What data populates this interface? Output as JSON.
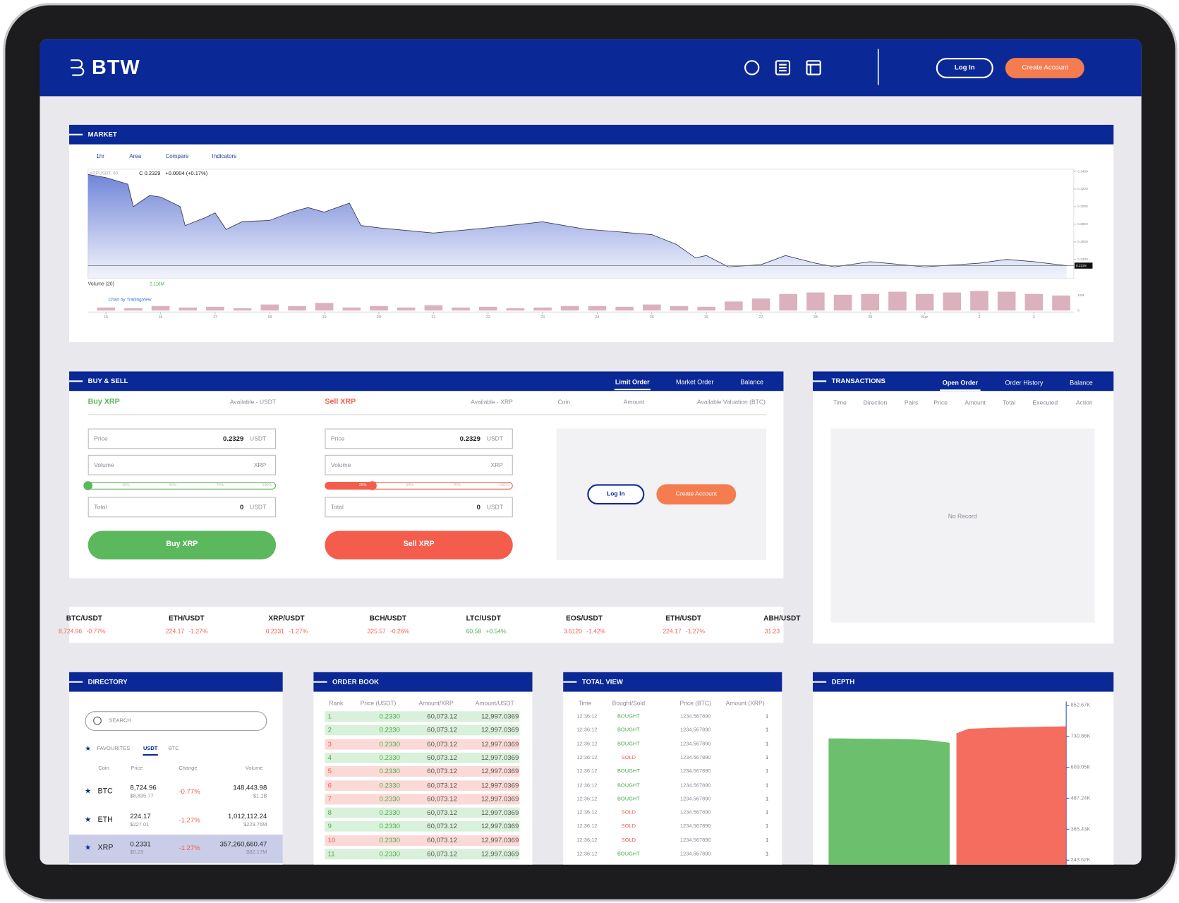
{
  "header": {
    "logo": "BTW",
    "login": "Log In",
    "create_account": "Create Account"
  },
  "market": {
    "title": "MARKET",
    "toolbar": [
      "1hr",
      "Area",
      "Compare",
      "Indicators"
    ],
    "symbol": "XRPUSDT, 60",
    "close": "C 0.2329",
    "change": "+0.0004 (+0.17%)",
    "credit": "Chart by TradingView"
  },
  "chart_data": [
    {
      "type": "area",
      "color": "#6a7fd6",
      "line_color": "#333a55",
      "x": [
        -0.33,
        0,
        0.4,
        0.5,
        0.8,
        1,
        1.36,
        1.45,
        1.8,
        2,
        2.2,
        2.5,
        3,
        3.4,
        3.7,
        4,
        4.46,
        4.67,
        5,
        6,
        7,
        8,
        8.8,
        9,
        10,
        10.45,
        10.8,
        11,
        11.4,
        12,
        12.45,
        13,
        13.35,
        14,
        15,
        16,
        16.5,
        17,
        17.6
      ],
      "values": [
        0.3366,
        0.333,
        0.3255,
        0.3,
        0.3127,
        0.311,
        0.3,
        0.2785,
        0.287,
        0.293,
        0.274,
        0.283,
        0.2844,
        0.2938,
        0.299,
        0.2938,
        0.304,
        0.2785,
        0.2759,
        0.27,
        0.2759,
        0.2827,
        0.2742,
        0.2733,
        0.2682,
        0.2571,
        0.2417,
        0.2443,
        0.2315,
        0.234,
        0.2443,
        0.2357,
        0.2315,
        0.2374,
        0.2315,
        0.2357,
        0.24,
        0.2374,
        0.2329
      ],
      "last_price": 0.2329,
      "xlim": [
        -0.33,
        17.73
      ],
      "xticks": [
        {
          "value": 0,
          "label": "15"
        },
        {
          "value": 1,
          "label": "16"
        },
        {
          "value": 2,
          "label": "17"
        },
        {
          "value": 3,
          "label": "18"
        },
        {
          "value": 4,
          "label": "19"
        },
        {
          "value": 5,
          "label": "20"
        },
        {
          "value": 6,
          "label": "21"
        },
        {
          "value": 7,
          "label": "22"
        },
        {
          "value": 8,
          "label": "23"
        },
        {
          "value": 9,
          "label": "24"
        },
        {
          "value": 10,
          "label": "25"
        },
        {
          "value": 11,
          "label": "26"
        },
        {
          "value": 12,
          "label": "27"
        },
        {
          "value": 13,
          "label": "28"
        },
        {
          "value": 14,
          "label": "29"
        },
        {
          "value": 15,
          "label": "Mar"
        },
        {
          "value": 16,
          "label": "2"
        },
        {
          "value": 17,
          "label": "3"
        }
      ],
      "ylim": [
        0.2186,
        0.3426
      ],
      "yticks": [
        {
          "value": 0.24,
          "label": "0.2400"
        },
        {
          "value": 0.26,
          "label": "0.2600"
        },
        {
          "value": 0.28,
          "label": "0.2800"
        },
        {
          "value": 0.3,
          "label": "0.3000"
        },
        {
          "value": 0.32,
          "label": "0.3200"
        },
        {
          "value": 0.34,
          "label": "0.3400"
        }
      ]
    },
    {
      "type": "bar",
      "title": "Volume (20)",
      "color": "#d3a3b0",
      "last_volume": {
        "value": 2.116,
        "label": "2.116M"
      },
      "x": [
        0,
        0.5,
        1,
        1.5,
        2,
        2.5,
        3,
        3.5,
        4,
        4.5,
        5,
        5.5,
        6,
        6.5,
        7,
        7.5,
        8,
        8.5,
        9,
        9.5,
        10,
        10.5,
        11,
        11.5,
        12,
        12.5,
        13,
        13.5,
        14,
        14.5,
        15,
        15.5,
        16,
        16.5,
        17,
        17.5
      ],
      "values": [
        2,
        1.5,
        3,
        2,
        2.5,
        1.5,
        4,
        3,
        5,
        2,
        3,
        2,
        3.5,
        2,
        2.5,
        1.5,
        2,
        3,
        3,
        2.5,
        4,
        3,
        2.5,
        6,
        8,
        11,
        12,
        10.5,
        11,
        12.5,
        11,
        12,
        13,
        12.5,
        11,
        10
      ],
      "xlim": [
        -0.33,
        17.73
      ],
      "ylim": [
        0,
        15
      ],
      "yticks": [
        0,
        {
          "value": 10,
          "label": "10M"
        }
      ]
    },
    {
      "type": "depth",
      "bids": {
        "color": "#5cb85c",
        "values": [
          722000,
          722000,
          721500,
          721000,
          720500,
          720000,
          719000,
          717000,
          712000,
          705000
        ]
      },
      "asks": {
        "color": "#f45d4c",
        "values": [
          742000,
          760000,
          762000,
          764000,
          765000,
          766000,
          767000,
          768000,
          769000,
          770000
        ]
      },
      "ylim": [
        225870,
        867450
      ],
      "yticks": [
        {
          "value": 243620,
          "label": "243.62K"
        },
        {
          "value": 365430,
          "label": "365.43K"
        },
        {
          "value": 487240,
          "label": "487.24K"
        },
        {
          "value": 609050,
          "label": "609.05K"
        },
        {
          "value": 730860,
          "label": "730.86K"
        },
        {
          "value": 852670,
          "label": "852.67K"
        }
      ]
    }
  ],
  "buy_sell": {
    "title": "BUY & SELL",
    "tabs": [
      "Limit Order",
      "Market Order",
      "Balance"
    ],
    "buy": {
      "heading": "Buy XRP",
      "available": "Available - USDT",
      "price_label": "Price",
      "price": "0.2329",
      "price_unit": "USDT",
      "volume_label": "Volume",
      "volume_unit": "XRP",
      "slider": 0,
      "steps": [
        "25%",
        "50%",
        "75%",
        "100%"
      ],
      "total_label": "Total",
      "total": "0",
      "total_unit": "USDT",
      "button": "Buy XRP",
      "color": "#5cb85c"
    },
    "sell": {
      "heading": "Sell XRP",
      "available": "Available - XRP",
      "price_label": "Price",
      "price": "0.2329",
      "price_unit": "USDT",
      "volume_label": "Volume",
      "volume_unit": "XRP",
      "slider": 25,
      "steps": [
        "25%",
        "50%",
        "75%",
        "100%"
      ],
      "total_label": "Total",
      "total": "0",
      "total_unit": "USDT",
      "button": "Sell XRP",
      "color": "#f45d4c"
    },
    "balance_columns": [
      "Coin",
      "Amount",
      "Available Valuation (BTC)"
    ],
    "login": "Log In",
    "create_account": "Create Account"
  },
  "ticker": [
    {
      "pair": "BTC/USDT",
      "price": "8,724.96",
      "change": "-0.77%",
      "color": "#f45d4c"
    },
    {
      "pair": "ETH/USDT",
      "price": "224.17",
      "change": "-1.27%",
      "color": "#f45d4c"
    },
    {
      "pair": "XRP/USDT",
      "price": "0.2331",
      "change": "-1.27%",
      "color": "#f45d4c"
    },
    {
      "pair": "BCH/USDT",
      "price": "325.57",
      "change": "-0.26%",
      "color": "#f45d4c"
    },
    {
      "pair": "LTC/USDT",
      "price": "60.58",
      "change": "+0.54%",
      "color": "#4cae4c"
    },
    {
      "pair": "EOS/USDT",
      "price": "3.6120",
      "change": "-1.42%",
      "color": "#f45d4c"
    },
    {
      "pair": "ETH/USDT",
      "price": "224.17",
      "change": "-1.27%",
      "color": "#f45d4c"
    },
    {
      "pair": "ABH/USDT",
      "price": "31.23",
      "color": "#f45d4c"
    }
  ],
  "transactions": {
    "title": "TRANSACTIONS",
    "tabs": [
      "Open Order",
      "Order History",
      "Balance"
    ],
    "columns": [
      "Time",
      "Direction",
      "Pairs",
      "Price",
      "Amount",
      "Total",
      "Executed",
      "Action"
    ],
    "empty": "No Record"
  },
  "directory": {
    "title": "DIRECTORY",
    "search": "SEARCH",
    "tabs": [
      "FAVOURITES",
      "USDT",
      "BTC"
    ],
    "columns": [
      "Coin",
      "Price",
      "Change",
      "Volume"
    ],
    "rows": [
      {
        "coin": "BTC",
        "price": "8,724.96",
        "price_usd": "$8,835.77",
        "change": "-0.77%",
        "volume": "148,443.98",
        "volume_usd": "$1.1B",
        "selected": false
      },
      {
        "coin": "ETH",
        "price": "224.17",
        "price_usd": "$227.01",
        "change": "-1.27%",
        "volume": "1,012,112.24",
        "volume_usd": "$229.76M",
        "selected": false
      },
      {
        "coin": "XRP",
        "price": "0.2331",
        "price_usd": "$0.23",
        "change": "-1.27%",
        "volume": "357,260,660.47",
        "volume_usd": "$82.17M",
        "selected": true
      }
    ]
  },
  "order_book": {
    "title": "ORDER BOOK",
    "columns": [
      "Rank",
      "Price (USDT)",
      "Amount/XRP",
      "Amount/USDT"
    ],
    "rows": [
      {
        "rank": "1",
        "price": "0.2330",
        "amount": "60,073.12",
        "total": "12,997.0369",
        "color": "#d9f0da"
      },
      {
        "rank": "2",
        "price": "0.2330",
        "amount": "60,073.12",
        "total": "12,997.0369",
        "color": "#d9f0da"
      },
      {
        "rank": "3",
        "price": "0.2330",
        "amount": "60,073.12",
        "total": "12,997.0369",
        "color": "#fbd9d6"
      },
      {
        "rank": "4",
        "price": "0.2330",
        "amount": "60,073.12",
        "total": "12,997.0369",
        "color": "#d9f0da"
      },
      {
        "rank": "5",
        "price": "0.2330",
        "amount": "60,073.12",
        "total": "12,997.0369",
        "color": "#fbd9d6"
      },
      {
        "rank": "6",
        "price": "0.2330",
        "amount": "60,073.12",
        "total": "12,997.0369",
        "color": "#fbd9d6"
      },
      {
        "rank": "7",
        "price": "0.2330",
        "amount": "60,073.12",
        "total": "12,997.0369",
        "color": "#fbd9d6"
      },
      {
        "rank": "8",
        "price": "0.2330",
        "amount": "60,073.12",
        "total": "12,997.0369",
        "color": "#d9f0da"
      },
      {
        "rank": "9",
        "price": "0.2330",
        "amount": "60,073.12",
        "total": "12,997.0369",
        "color": "#d9f0da"
      },
      {
        "rank": "10",
        "price": "0.2330",
        "amount": "60,073.12",
        "total": "12,997.0369",
        "color": "#fbd9d6"
      },
      {
        "rank": "11",
        "price": "0.2330",
        "amount": "60,073.12",
        "total": "12,997.0369",
        "color": "#d9f0da"
      }
    ]
  },
  "total_view": {
    "title": "TOTAL VIEW",
    "columns": [
      "Time",
      "Bought/Sold",
      "Price (BTC)",
      "Amount (XRP)"
    ],
    "rows": [
      {
        "time": "12:36:12",
        "side": "BOUGHT",
        "price": "1234.567890",
        "amount": "1",
        "color": "#4cae4c"
      },
      {
        "time": "12:36:12",
        "side": "BOUGHT",
        "price": "1234.567890",
        "amount": "1",
        "color": "#4cae4c"
      },
      {
        "time": "12:36:12",
        "side": "BOUGHT",
        "price": "1234.567890",
        "amount": "1",
        "color": "#4cae4c"
      },
      {
        "time": "12:36:12",
        "side": "SOLD",
        "price": "1234.567890",
        "amount": "1",
        "color": "#f45d4c"
      },
      {
        "time": "12:36:12",
        "side": "BOUGHT",
        "price": "1234.567890",
        "amount": "1",
        "color": "#4cae4c"
      },
      {
        "time": "12:36:12",
        "side": "BOUGHT",
        "price": "1234.567890",
        "amount": "1",
        "color": "#4cae4c"
      },
      {
        "time": "12:36:12",
        "side": "BOUGHT",
        "price": "1234.567890",
        "amount": "1",
        "color": "#4cae4c"
      },
      {
        "time": "12:36:12",
        "side": "SOLD",
        "price": "1234.567890",
        "amount": "1",
        "color": "#f45d4c"
      },
      {
        "time": "12:36:12",
        "side": "SOLD",
        "price": "1234.567890",
        "amount": "1",
        "color": "#f45d4c"
      },
      {
        "time": "12:36:12",
        "side": "SOLD",
        "price": "1234.567890",
        "amount": "1",
        "color": "#f45d4c"
      },
      {
        "time": "12:36:12",
        "side": "BOUGHT",
        "price": "1234.567890",
        "amount": "1",
        "color": "#4cae4c"
      }
    ]
  },
  "depth": {
    "title": "DEPTH"
  }
}
